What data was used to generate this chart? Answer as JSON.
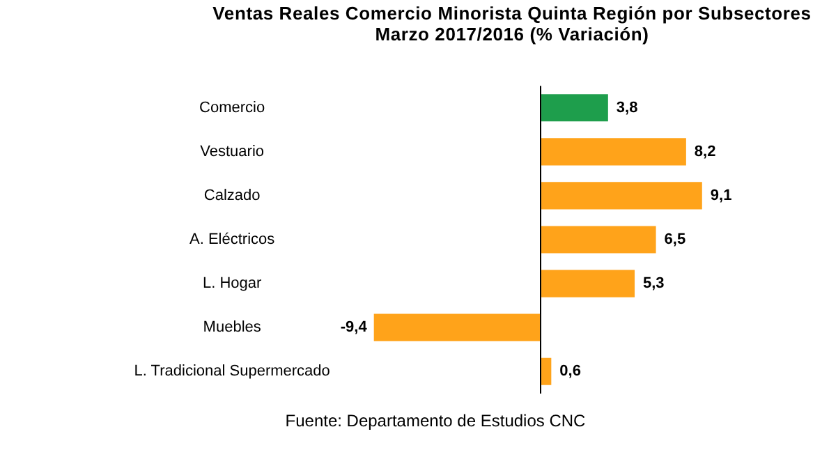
{
  "chart_data": {
    "type": "bar",
    "orientation": "horizontal",
    "title": "Ventas Reales Comercio Minorista Quinta Región por Subsectores",
    "subtitle": "Marzo  2017/2016 (% Variación)",
    "categories": [
      "Comercio",
      "Vestuario",
      "Calzado",
      "A. Eléctricos",
      "L. Hogar",
      "Muebles",
      "L. Tradicional Supermercado"
    ],
    "values": [
      3.8,
      8.2,
      9.1,
      6.5,
      5.3,
      -9.4,
      0.6
    ],
    "colors": [
      "#1e9e4c",
      "#ffa31a",
      "#ffa31a",
      "#ffa31a",
      "#ffa31a",
      "#ffa31a",
      "#ffa31a"
    ],
    "value_labels": [
      "3,8",
      "8,2",
      "9,1",
      "6,5",
      "5,3",
      "-9,4",
      "0,6"
    ],
    "annotations": [
      "Fuente: Departamento de Estudios CNC"
    ]
  }
}
